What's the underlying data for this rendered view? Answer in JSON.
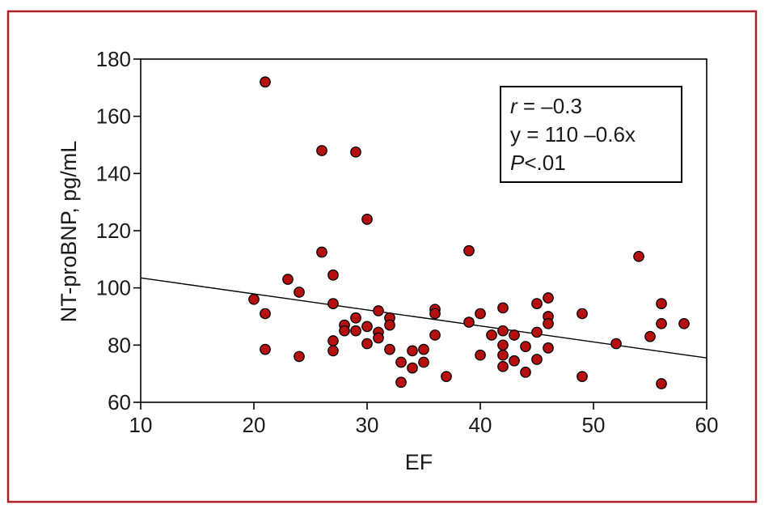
{
  "chart_data": {
    "type": "scatter",
    "title": "",
    "xlabel": "EF",
    "ylabel": "NT-proBNP, pg/mL",
    "xlim": [
      10,
      60
    ],
    "ylim": [
      60,
      180
    ],
    "xticks": [
      10,
      20,
      30,
      40,
      50,
      60
    ],
    "yticks": [
      60,
      80,
      100,
      120,
      140,
      160,
      180
    ],
    "grid": false,
    "annotation": {
      "r_symbol": "r",
      "r_text": " = –0.3",
      "equation": "y = 110 –0.6x",
      "p_symbol": "P",
      "p_text": "<.01",
      "placement": "top-right"
    },
    "trendline": {
      "x": [
        10,
        60
      ],
      "y": [
        103.5,
        75.5
      ]
    },
    "colors": {
      "point": "#b50f0f",
      "frame": "#b0202a",
      "line": "#000000"
    },
    "points": [
      [
        21,
        172
      ],
      [
        26,
        148
      ],
      [
        29,
        147.5
      ],
      [
        30,
        124
      ],
      [
        26,
        112.5
      ],
      [
        39,
        113
      ],
      [
        54,
        111
      ],
      [
        23,
        103
      ],
      [
        27,
        104.5
      ],
      [
        24,
        98.5
      ],
      [
        20,
        96
      ],
      [
        27,
        94.5
      ],
      [
        21,
        91
      ],
      [
        29,
        89.5
      ],
      [
        31,
        92
      ],
      [
        32,
        89.5
      ],
      [
        28,
        87
      ],
      [
        30,
        86.5
      ],
      [
        32,
        87
      ],
      [
        28,
        85
      ],
      [
        29,
        85
      ],
      [
        31,
        84.5
      ],
      [
        31,
        82.5
      ],
      [
        27,
        81.5
      ],
      [
        30,
        80.5
      ],
      [
        27,
        78
      ],
      [
        21,
        78.5
      ],
      [
        24,
        76
      ],
      [
        32,
        78.5
      ],
      [
        33,
        74
      ],
      [
        34,
        78
      ],
      [
        35,
        78.5
      ],
      [
        35,
        74
      ],
      [
        34,
        72
      ],
      [
        33,
        67
      ],
      [
        36,
        92.5
      ],
      [
        36,
        91
      ],
      [
        36,
        83.5
      ],
      [
        37,
        69
      ],
      [
        39,
        88
      ],
      [
        40,
        91
      ],
      [
        40,
        76.5
      ],
      [
        41,
        83.5
      ],
      [
        42,
        93
      ],
      [
        42,
        85
      ],
      [
        42,
        80
      ],
      [
        42,
        76.5
      ],
      [
        42,
        72.5
      ],
      [
        43,
        83.5
      ],
      [
        43,
        74.5
      ],
      [
        44,
        79.5
      ],
      [
        44,
        70.5
      ],
      [
        45,
        94.5
      ],
      [
        45,
        84.5
      ],
      [
        45,
        75
      ],
      [
        46,
        96.5
      ],
      [
        46,
        90
      ],
      [
        46,
        87.5
      ],
      [
        46,
        79
      ],
      [
        49,
        91
      ],
      [
        49,
        69
      ],
      [
        52,
        80.5
      ],
      [
        55,
        83
      ],
      [
        56,
        94.5
      ],
      [
        56,
        87.5
      ],
      [
        56,
        66.5
      ],
      [
        58,
        87.5
      ]
    ]
  }
}
